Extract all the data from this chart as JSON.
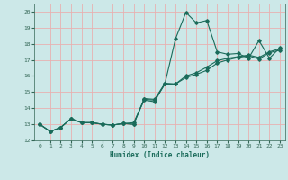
{
  "xlabel": "Humidex (Indice chaleur)",
  "xlim": [
    -0.5,
    23.5
  ],
  "ylim": [
    12,
    20.5
  ],
  "yticks": [
    12,
    13,
    14,
    15,
    16,
    17,
    18,
    19,
    20
  ],
  "xticks": [
    0,
    1,
    2,
    3,
    4,
    5,
    6,
    7,
    8,
    9,
    10,
    11,
    12,
    13,
    14,
    15,
    16,
    17,
    18,
    19,
    20,
    21,
    22,
    23
  ],
  "bg_color": "#cce8e8",
  "line_color": "#1a6b5a",
  "grid_color": "#e8b0b0",
  "line1_y": [
    13.0,
    12.55,
    12.8,
    13.35,
    13.1,
    13.1,
    13.0,
    12.95,
    13.05,
    13.1,
    14.5,
    14.4,
    15.55,
    18.3,
    19.95,
    19.3,
    19.45,
    17.5,
    17.35,
    17.4,
    17.1,
    18.2,
    17.1,
    17.75
  ],
  "line2_y": [
    13.0,
    12.55,
    12.8,
    13.35,
    13.1,
    13.1,
    13.0,
    12.95,
    13.05,
    13.0,
    14.6,
    14.55,
    15.55,
    15.5,
    16.0,
    16.2,
    16.55,
    16.95,
    17.1,
    17.2,
    17.3,
    17.15,
    17.5,
    17.7
  ],
  "line3_y": [
    13.0,
    12.55,
    12.8,
    13.35,
    13.1,
    13.1,
    13.0,
    12.95,
    13.05,
    13.0,
    14.55,
    14.5,
    15.5,
    15.5,
    15.9,
    16.1,
    16.35,
    16.8,
    17.0,
    17.15,
    17.25,
    17.05,
    17.45,
    17.6
  ]
}
